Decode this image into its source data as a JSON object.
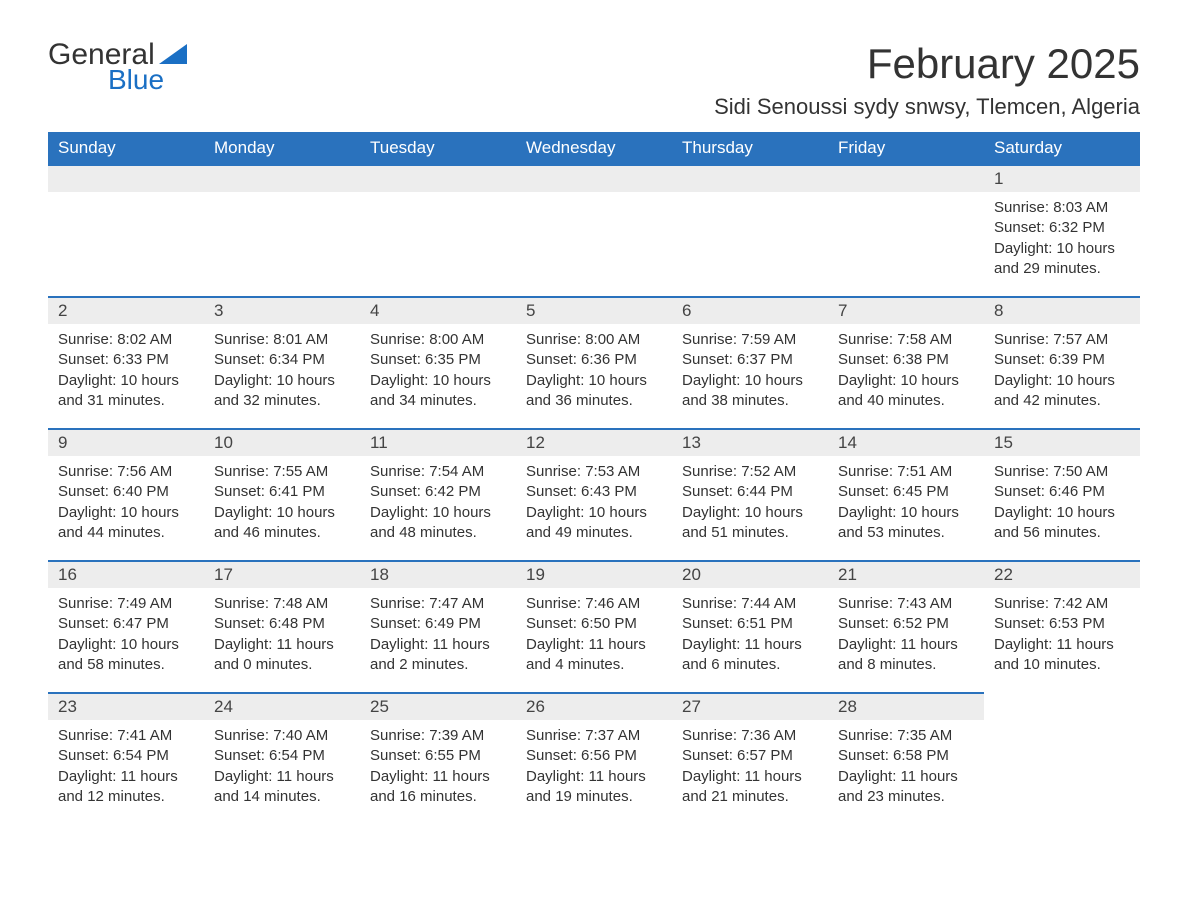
{
  "logo": {
    "text_general": "General",
    "text_blue": "Blue",
    "color_general": "#333333",
    "color_blue": "#1a6fc4",
    "triangle_color": "#1a6fc4"
  },
  "title": "February 2025",
  "location": "Sidi Senoussi sydy snwsy, Tlemcen, Algeria",
  "colors": {
    "header_bg": "#2a72bd",
    "header_text": "#ffffff",
    "daynum_bg": "#ededed",
    "row_border": "#2a72bd",
    "body_text": "#333333",
    "page_bg": "#ffffff"
  },
  "fonts": {
    "title_size_pt": 32,
    "location_size_pt": 17,
    "header_size_pt": 13,
    "body_size_pt": 11
  },
  "weekdays": [
    "Sunday",
    "Monday",
    "Tuesday",
    "Wednesday",
    "Thursday",
    "Friday",
    "Saturday"
  ],
  "first_weekday_index": 6,
  "days": [
    {
      "n": 1,
      "sunrise": "8:03 AM",
      "sunset": "6:32 PM",
      "daylight": "10 hours and 29 minutes."
    },
    {
      "n": 2,
      "sunrise": "8:02 AM",
      "sunset": "6:33 PM",
      "daylight": "10 hours and 31 minutes."
    },
    {
      "n": 3,
      "sunrise": "8:01 AM",
      "sunset": "6:34 PM",
      "daylight": "10 hours and 32 minutes."
    },
    {
      "n": 4,
      "sunrise": "8:00 AM",
      "sunset": "6:35 PM",
      "daylight": "10 hours and 34 minutes."
    },
    {
      "n": 5,
      "sunrise": "8:00 AM",
      "sunset": "6:36 PM",
      "daylight": "10 hours and 36 minutes."
    },
    {
      "n": 6,
      "sunrise": "7:59 AM",
      "sunset": "6:37 PM",
      "daylight": "10 hours and 38 minutes."
    },
    {
      "n": 7,
      "sunrise": "7:58 AM",
      "sunset": "6:38 PM",
      "daylight": "10 hours and 40 minutes."
    },
    {
      "n": 8,
      "sunrise": "7:57 AM",
      "sunset": "6:39 PM",
      "daylight": "10 hours and 42 minutes."
    },
    {
      "n": 9,
      "sunrise": "7:56 AM",
      "sunset": "6:40 PM",
      "daylight": "10 hours and 44 minutes."
    },
    {
      "n": 10,
      "sunrise": "7:55 AM",
      "sunset": "6:41 PM",
      "daylight": "10 hours and 46 minutes."
    },
    {
      "n": 11,
      "sunrise": "7:54 AM",
      "sunset": "6:42 PM",
      "daylight": "10 hours and 48 minutes."
    },
    {
      "n": 12,
      "sunrise": "7:53 AM",
      "sunset": "6:43 PM",
      "daylight": "10 hours and 49 minutes."
    },
    {
      "n": 13,
      "sunrise": "7:52 AM",
      "sunset": "6:44 PM",
      "daylight": "10 hours and 51 minutes."
    },
    {
      "n": 14,
      "sunrise": "7:51 AM",
      "sunset": "6:45 PM",
      "daylight": "10 hours and 53 minutes."
    },
    {
      "n": 15,
      "sunrise": "7:50 AM",
      "sunset": "6:46 PM",
      "daylight": "10 hours and 56 minutes."
    },
    {
      "n": 16,
      "sunrise": "7:49 AM",
      "sunset": "6:47 PM",
      "daylight": "10 hours and 58 minutes."
    },
    {
      "n": 17,
      "sunrise": "7:48 AM",
      "sunset": "6:48 PM",
      "daylight": "11 hours and 0 minutes."
    },
    {
      "n": 18,
      "sunrise": "7:47 AM",
      "sunset": "6:49 PM",
      "daylight": "11 hours and 2 minutes."
    },
    {
      "n": 19,
      "sunrise": "7:46 AM",
      "sunset": "6:50 PM",
      "daylight": "11 hours and 4 minutes."
    },
    {
      "n": 20,
      "sunrise": "7:44 AM",
      "sunset": "6:51 PM",
      "daylight": "11 hours and 6 minutes."
    },
    {
      "n": 21,
      "sunrise": "7:43 AM",
      "sunset": "6:52 PM",
      "daylight": "11 hours and 8 minutes."
    },
    {
      "n": 22,
      "sunrise": "7:42 AM",
      "sunset": "6:53 PM",
      "daylight": "11 hours and 10 minutes."
    },
    {
      "n": 23,
      "sunrise": "7:41 AM",
      "sunset": "6:54 PM",
      "daylight": "11 hours and 12 minutes."
    },
    {
      "n": 24,
      "sunrise": "7:40 AM",
      "sunset": "6:54 PM",
      "daylight": "11 hours and 14 minutes."
    },
    {
      "n": 25,
      "sunrise": "7:39 AM",
      "sunset": "6:55 PM",
      "daylight": "11 hours and 16 minutes."
    },
    {
      "n": 26,
      "sunrise": "7:37 AM",
      "sunset": "6:56 PM",
      "daylight": "11 hours and 19 minutes."
    },
    {
      "n": 27,
      "sunrise": "7:36 AM",
      "sunset": "6:57 PM",
      "daylight": "11 hours and 21 minutes."
    },
    {
      "n": 28,
      "sunrise": "7:35 AM",
      "sunset": "6:58 PM",
      "daylight": "11 hours and 23 minutes."
    }
  ],
  "labels": {
    "sunrise": "Sunrise:",
    "sunset": "Sunset:",
    "daylight": "Daylight:"
  }
}
